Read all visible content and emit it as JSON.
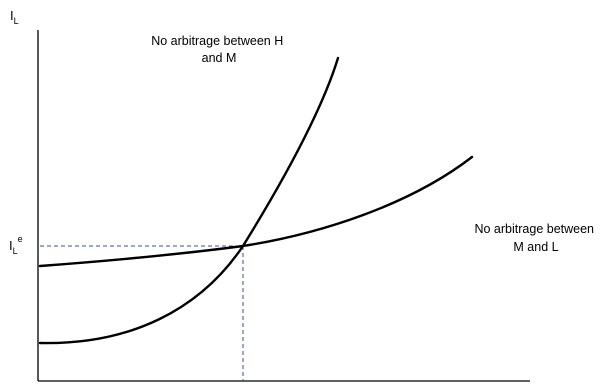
{
  "axes": {
    "y_axis_label": {
      "main": "I",
      "subscript": "L"
    },
    "equilibrium_label": {
      "main": "I",
      "subscript": "L",
      "superscript": "e"
    }
  },
  "curves": {
    "hm": {
      "label_lines": [
        "No arbitrage between H",
        "and M"
      ]
    },
    "ml": {
      "label_lines": [
        "No arbitrage between",
        "M and L"
      ]
    }
  },
  "colors": {
    "curve": "#000000",
    "axis": "#000000",
    "guide": "#2f5597"
  }
}
